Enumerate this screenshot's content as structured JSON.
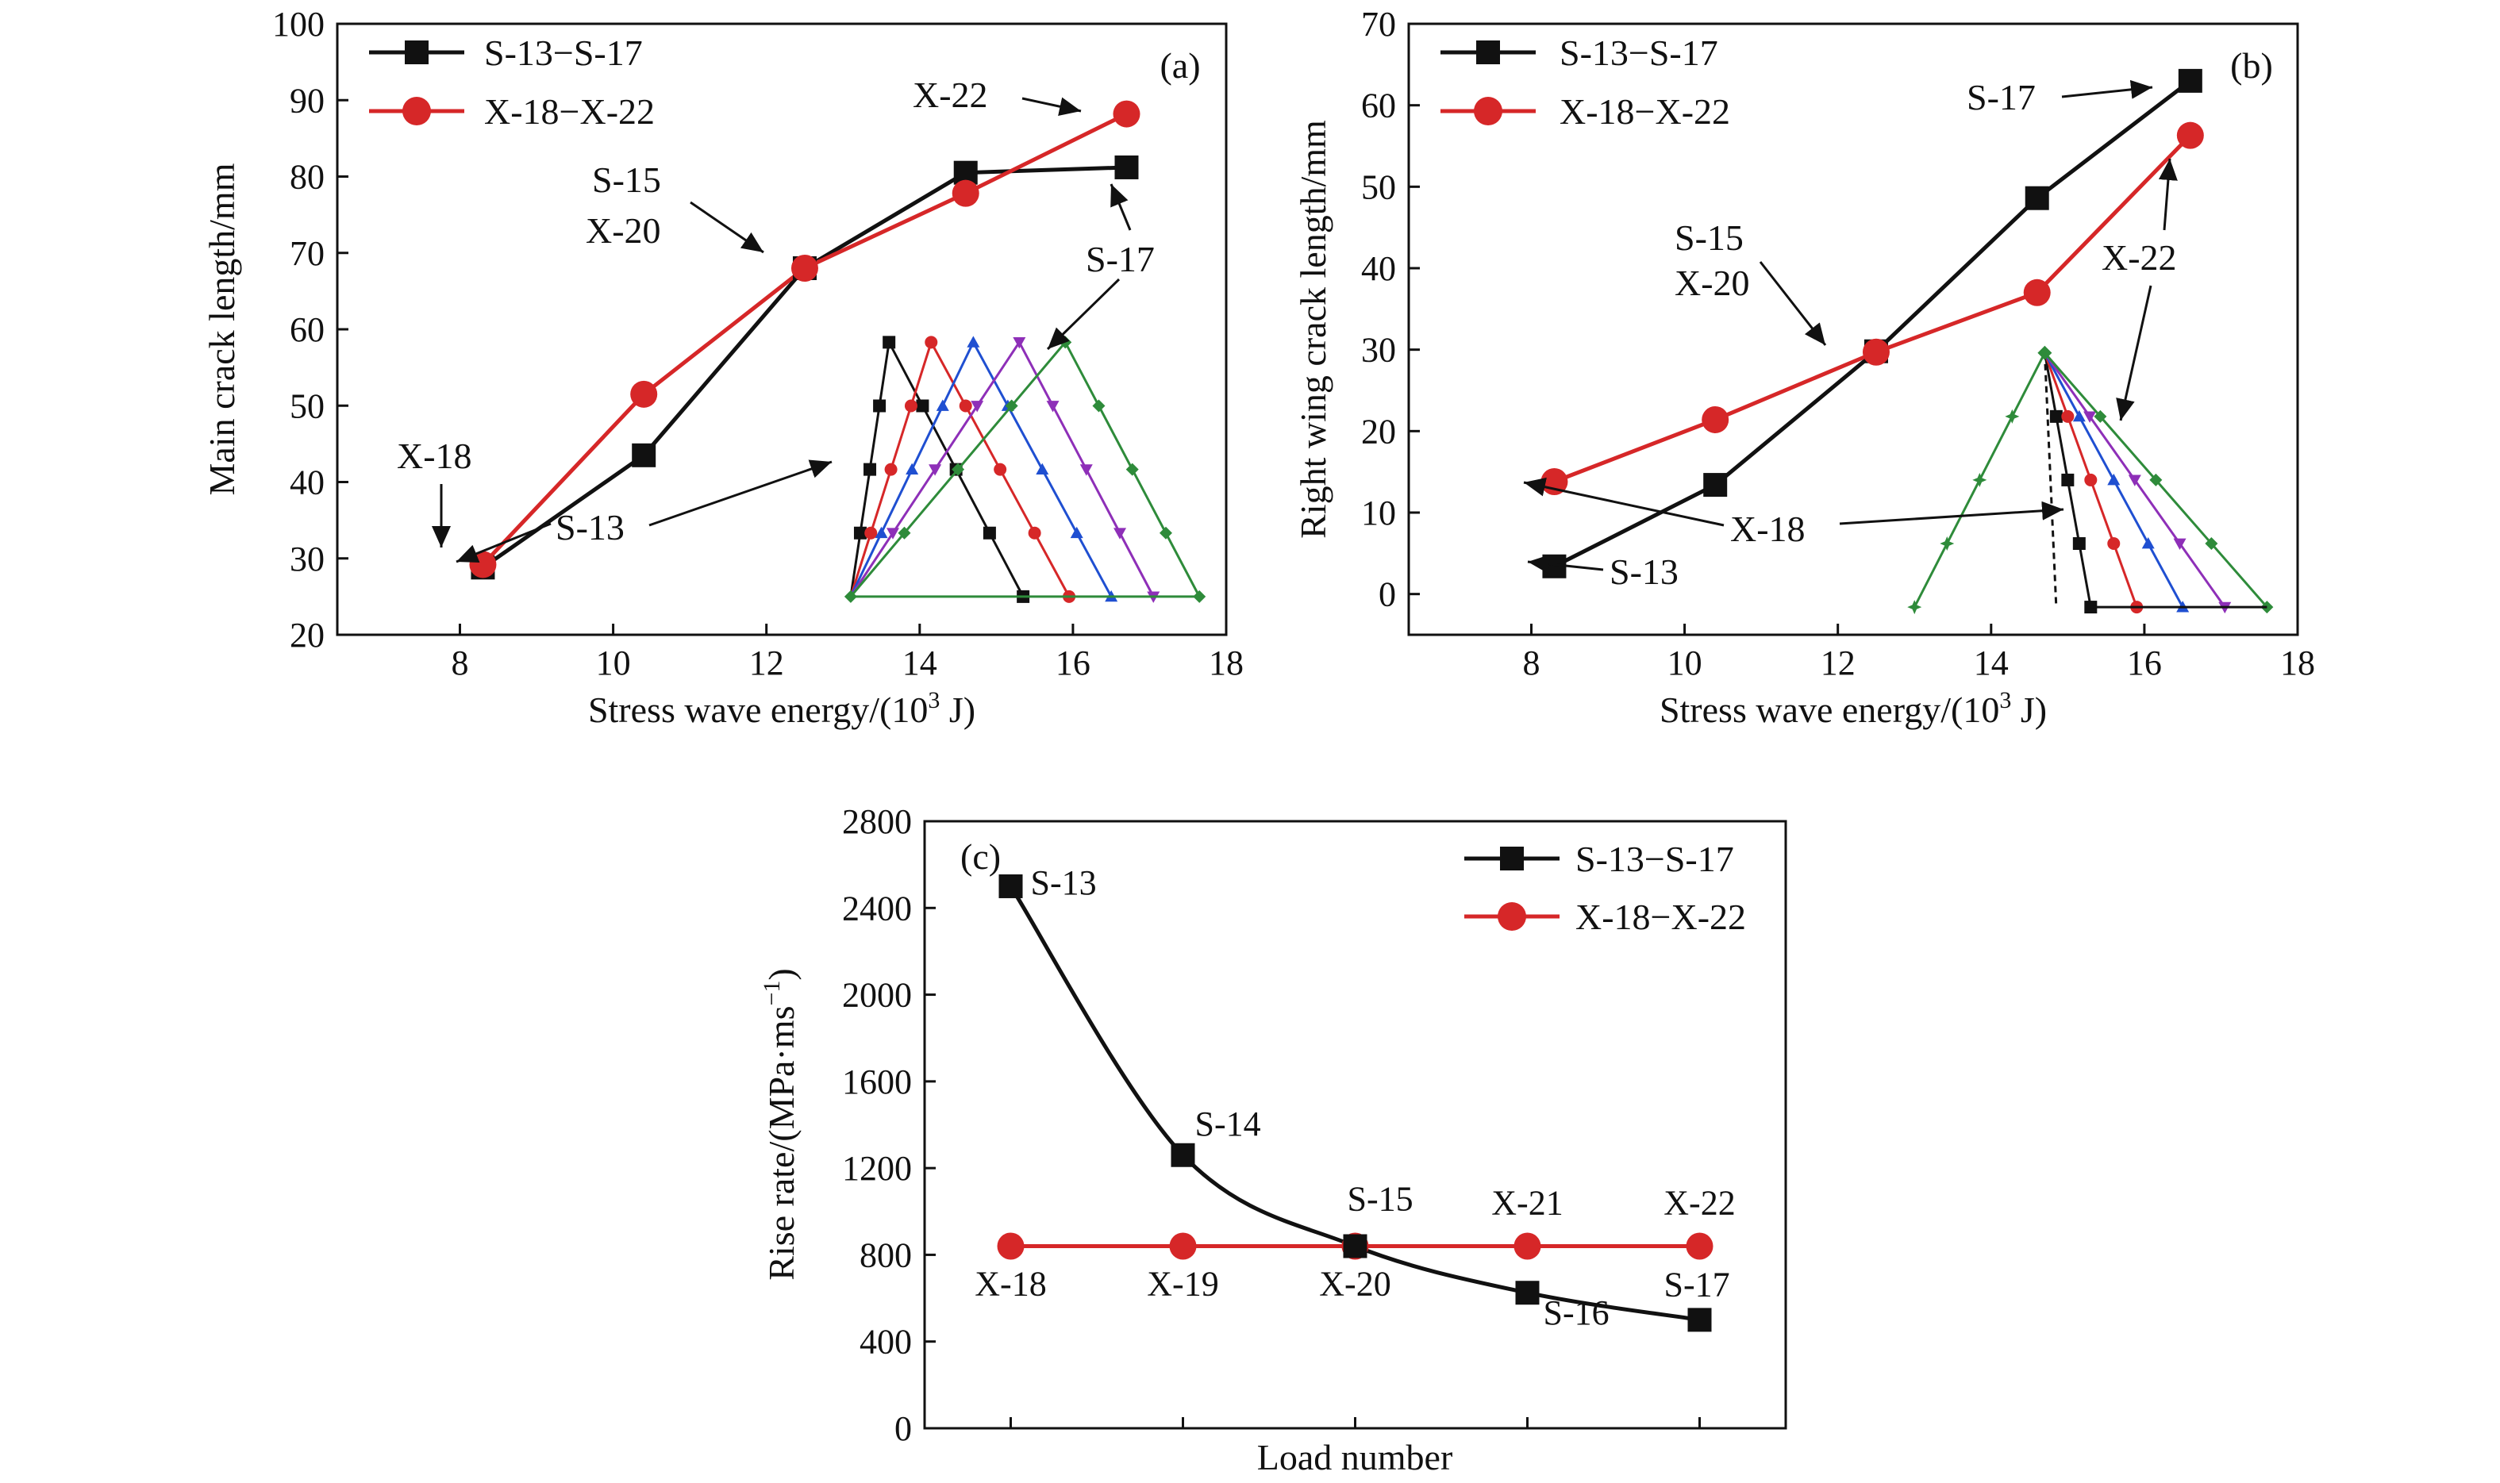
{
  "colors": {
    "black": "#111111",
    "red": "#d62728",
    "blue": "#1f4fd1",
    "magenta": "#d11ad1",
    "purple": "#8e2fb8",
    "green": "#2e8b3a"
  },
  "chart_data": [
    {
      "type": "line",
      "panel": "(a)",
      "xlabel": "Stress wave energy/(10",
      "xlabel_sup": "3",
      "xlabel_tail": " J)",
      "ylabel": "Main crack length/mm",
      "xlim": [
        6.4,
        18
      ],
      "ylim": [
        20,
        100
      ],
      "xticks": [
        8,
        10,
        12,
        14,
        16,
        18
      ],
      "yticks": [
        20,
        30,
        40,
        50,
        60,
        70,
        80,
        90,
        100
      ],
      "legend": [
        "S-13−S-17",
        "X-18−X-22"
      ],
      "series": [
        {
          "name": "S-13−S-17",
          "x": [
            8.3,
            10.4,
            12.5,
            14.6,
            16.7
          ],
          "y": [
            28.8,
            43.5,
            68.0,
            80.5,
            81.2
          ]
        },
        {
          "name": "X-18−X-22",
          "x": [
            8.3,
            10.4,
            12.5,
            14.6,
            16.7
          ],
          "y": [
            29.2,
            51.5,
            68.0,
            77.8,
            88.2
          ]
        }
      ],
      "annotations": [
        "X-18",
        "S-13",
        "S-15",
        "X-20",
        "X-22",
        "S-17"
      ],
      "inset": {
        "peaks_x": [
          13.6,
          14.15,
          14.7,
          15.3,
          15.9
        ],
        "start_x": 13.1,
        "base_y": 25.0,
        "peak_y": 58.3,
        "end_x": [
          15.35,
          15.95,
          16.5,
          17.05,
          17.65
        ]
      }
    },
    {
      "type": "line",
      "panel": "(b)",
      "xlabel": "Stress wave energy/(10",
      "xlabel_sup": "3",
      "xlabel_tail": " J)",
      "ylabel": "Right wing crack length/mm",
      "xlim": [
        6.4,
        18
      ],
      "ylim": [
        -5,
        70
      ],
      "xticks": [
        8,
        10,
        12,
        14,
        16,
        18
      ],
      "yticks": [
        0,
        10,
        20,
        30,
        40,
        50,
        60,
        70
      ],
      "legend": [
        "S-13−S-17",
        "X-18−X-22"
      ],
      "series": [
        {
          "name": "S-13−S-17",
          "x": [
            8.3,
            10.4,
            12.5,
            14.6,
            16.6
          ],
          "y": [
            3.4,
            13.4,
            29.8,
            48.6,
            63.0
          ]
        },
        {
          "name": "X-18−X-22",
          "x": [
            8.3,
            10.4,
            12.5,
            14.6,
            16.6
          ],
          "y": [
            13.8,
            21.4,
            29.7,
            37.0,
            56.3
          ]
        }
      ],
      "annotations": [
        "S-17",
        "S-15",
        "X-20",
        "X-22",
        "X-18",
        "S-13"
      ],
      "inset": {
        "apex_x": 14.7,
        "apex_y": 29.6,
        "base_y": -1.6,
        "fan_end_x": [
          15.3,
          15.9,
          16.5,
          17.05,
          17.6
        ],
        "left_leg_x": [
          14.85,
          13.0
        ]
      }
    },
    {
      "type": "line",
      "panel": "(c)",
      "xlabel": "Load number",
      "ylabel": "Rise rate/(MPa·ms",
      "ylabel_sup": "−1",
      "ylabel_tail": ")",
      "xlim": [
        0.5,
        5.5
      ],
      "ylim": [
        0,
        2800
      ],
      "yticks": [
        0,
        400,
        800,
        1200,
        1600,
        2000,
        2400,
        2800
      ],
      "legend": [
        "S-13−S-17",
        "X-18−X-22"
      ],
      "series": [
        {
          "name": "S-13−S-17",
          "x": [
            1,
            2,
            3,
            4,
            5
          ],
          "y": [
            2500,
            1260,
            840,
            625,
            500
          ]
        },
        {
          "name": "X-18−X-22",
          "x": [
            1,
            2,
            3,
            4,
            5
          ],
          "y": [
            840,
            840,
            840,
            840,
            840
          ]
        }
      ],
      "point_labels_black": [
        "S-13",
        "S-14",
        "S-15",
        "S-16",
        "S-17"
      ],
      "point_labels_red": [
        "X-18",
        "X-19",
        "X-20",
        "X-21",
        "X-22"
      ]
    }
  ]
}
